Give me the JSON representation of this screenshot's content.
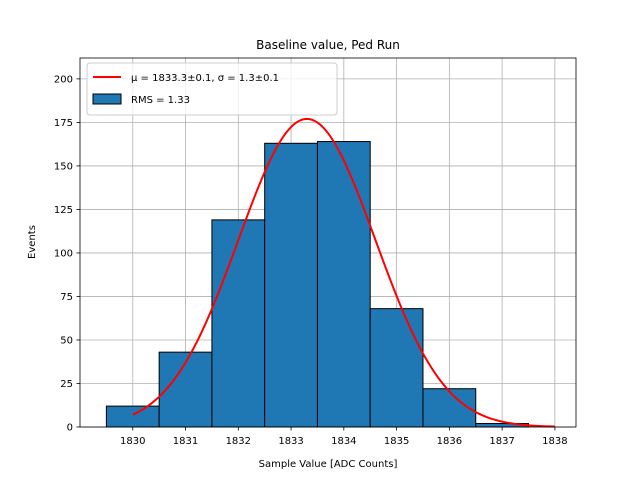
{
  "chart_data": {
    "type": "bar",
    "title": "Baseline value, Ped Run",
    "xlabel": "Sample Value [ADC Counts]",
    "ylabel": "Events",
    "xlim": [
      1829.0,
      1838.4
    ],
    "ylim": [
      0,
      212
    ],
    "xticks": [
      1830,
      1831,
      1832,
      1833,
      1834,
      1835,
      1836,
      1837,
      1838
    ],
    "yticks": [
      0,
      25,
      50,
      75,
      100,
      125,
      150,
      175,
      200
    ],
    "grid": true,
    "legend_position": "top-left",
    "histogram": {
      "name": "RMS = 1.33",
      "color": "#1f77b4",
      "bins": [
        {
          "left": 1829.5,
          "right": 1830.5,
          "value": 12
        },
        {
          "left": 1830.5,
          "right": 1831.5,
          "value": 43
        },
        {
          "left": 1831.5,
          "right": 1832.5,
          "value": 119
        },
        {
          "left": 1832.5,
          "right": 1833.5,
          "value": 163
        },
        {
          "left": 1833.5,
          "right": 1834.5,
          "value": 164
        },
        {
          "left": 1834.5,
          "right": 1835.5,
          "value": 68
        },
        {
          "left": 1835.5,
          "right": 1836.5,
          "value": 22
        },
        {
          "left": 1836.5,
          "right": 1837.5,
          "value": 2
        }
      ]
    },
    "fit": {
      "name": "μ = 1833.3±0.1, σ = 1.3±0.1",
      "color": "#ff0000",
      "mu": 1833.3,
      "sigma": 1.3,
      "amplitude": 177,
      "x_range": [
        1830,
        1838
      ]
    }
  }
}
